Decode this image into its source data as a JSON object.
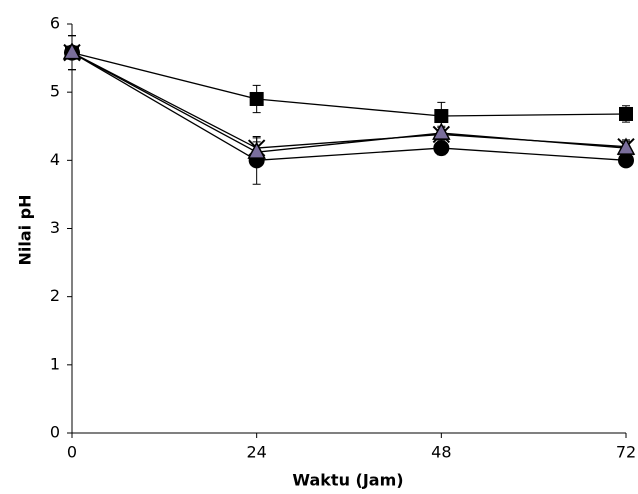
{
  "chart_data": {
    "type": "line",
    "x_label": "Waktu (Jam)",
    "y_label": "Nilai pH",
    "x": [
      0,
      24,
      48,
      72
    ],
    "xlim": [
      0,
      72
    ],
    "xticks": [
      0,
      24,
      48,
      72
    ],
    "ylim": [
      0,
      6
    ],
    "yticks": [
      0,
      1,
      2,
      3,
      4,
      5,
      6
    ],
    "series": [
      {
        "marker": "square",
        "color": "#000000",
        "values": [
          5.58,
          4.9,
          4.65,
          4.68
        ],
        "errors": [
          0.25,
          0.2,
          0.2,
          0.12
        ]
      },
      {
        "marker": "circle",
        "color": "#000000",
        "values": [
          5.58,
          4.0,
          4.18,
          4.0
        ],
        "errors": [
          0.25,
          0.35,
          0.1,
          0.08
        ]
      },
      {
        "marker": "x",
        "color": "#000000",
        "values": [
          5.58,
          4.18,
          4.38,
          4.2
        ],
        "errors": [
          0.25,
          0.15,
          0.1,
          0.1
        ]
      },
      {
        "marker": "triangle",
        "color": "#7a6e9c",
        "values": [
          5.58,
          4.12,
          4.4,
          4.18
        ],
        "errors": [
          0.25,
          0.15,
          0.1,
          0.1
        ]
      }
    ]
  }
}
